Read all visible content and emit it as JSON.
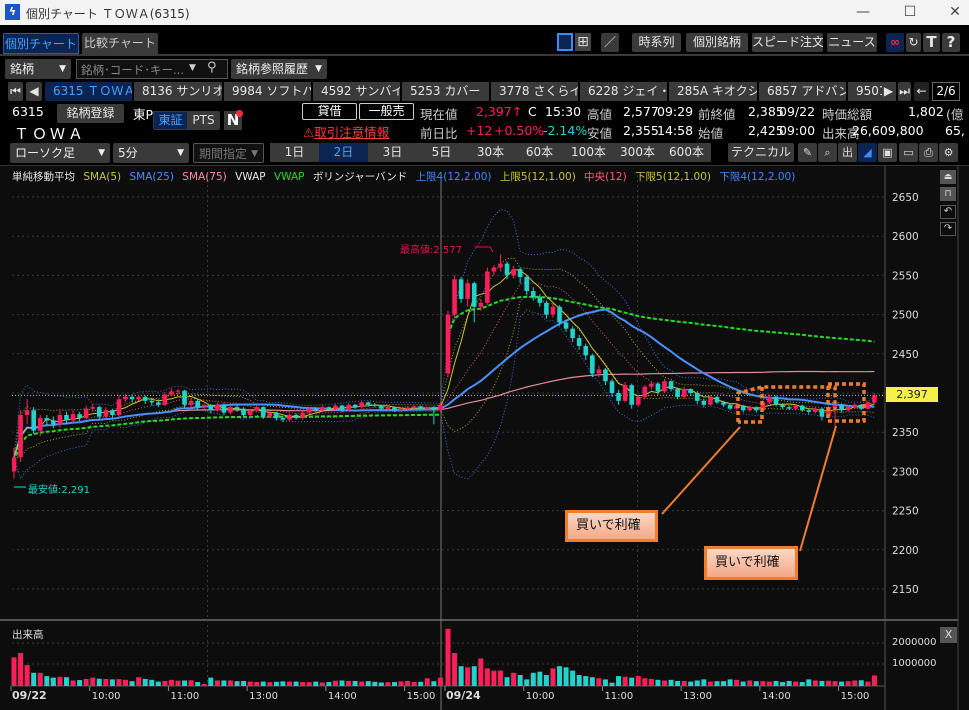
{
  "window": {
    "title": "個別チャート ＴＯＷＡ(6315)",
    "minimize": "—",
    "maximize": "☐",
    "close": "✕"
  },
  "tabs": [
    "個別チャート",
    "比較チャート"
  ],
  "toolbar": {
    "buttons": [
      "時系列",
      "個別銘柄",
      "スピード注文",
      "ニュース"
    ],
    "t_label": "T",
    "help_label": "?"
  },
  "search": {
    "type_select": "銘柄",
    "placeholder": "銘柄･コード･キー...",
    "history": "銘柄参照履歴"
  },
  "symbol_tabs": {
    "items": [
      "6315 ＴＯＷＡ",
      "8136 サンリオ",
      "9984 ソフトバ...",
      "4592 サンバイオ",
      "5253 カバー",
      "3778 さくらイ...",
      "6228 ジェイ・イ...",
      "285A キオクシ...",
      "6857 アドバン...",
      "9501"
    ],
    "active": 0,
    "page": "2/6"
  },
  "stock": {
    "code": "6315",
    "name": "ＴＯＷＡ",
    "register": "銘柄登録",
    "market": "東P",
    "exchange_toggle": [
      "東証",
      "PTS"
    ],
    "news_icon": "N",
    "credit": "貸借",
    "general_sell": "一般売",
    "warning": "取引注意情報",
    "current_label": "現在値",
    "current": "2,397",
    "current_arrow": "↑",
    "current_flag": "C",
    "current_time": "15:30",
    "high_label": "高値",
    "high": "2,577",
    "high_time": "09:29",
    "prev_close_label": "前終値",
    "prev_close": "2,385",
    "prev_close_date": "09/22",
    "mcap_label": "時価総額",
    "mcap": "1,802",
    "mcap_unit": "(億",
    "change_label": "前日比",
    "change": "+12",
    "change_pct": "+0.50%",
    "other_pct": "-2.14%",
    "low_label": "安値",
    "low": "2,355",
    "low_time": "14:58",
    "open_label": "始値",
    "open": "2,425",
    "open_time": "09:00",
    "volume_label": "出来高",
    "volume": "26,609,800",
    "volume_extra": "65,"
  },
  "controls": {
    "chart_type": "ローソク足",
    "interval": "5分",
    "period": "期間指定",
    "ranges": [
      "1日",
      "2日",
      "3日",
      "5日",
      "30本",
      "60本",
      "100本",
      "300本",
      "600本"
    ],
    "active_range": 1,
    "technical": "テクニカル"
  },
  "legend": [
    {
      "text": "単純移動平均",
      "color": "#e8e8e8"
    },
    {
      "text": "SMA(5)",
      "color": "#c9c632"
    },
    {
      "text": "SMA(25)",
      "color": "#4a90ff"
    },
    {
      "text": "SMA(75)",
      "color": "#ff8fa8"
    },
    {
      "text": "VWAP",
      "color": "#e8e8e8"
    },
    {
      "text": "VWAP",
      "color": "#22dd22"
    },
    {
      "text": "ボリンジャーバンド",
      "color": "#e8e8e8"
    },
    {
      "text": "上限4(12,2.00)",
      "color": "#3d8bff"
    },
    {
      "text": "上限5(12,1.00)",
      "color": "#c9c632"
    },
    {
      "text": "中央(12)",
      "color": "#ff5c7a"
    },
    {
      "text": "下限5(12,1.00)",
      "color": "#c9c632"
    },
    {
      "text": "下限4(12,2.00)",
      "color": "#3d8bff"
    }
  ],
  "colors": {
    "up": "#ff1e5a",
    "down": "#22d3cc",
    "current_price_tag": "#f5f04a",
    "annotation": "#ef7d2e"
  },
  "annotations": {
    "callouts": [
      "買いで利確",
      "買いで利確"
    ],
    "max_label": "最高値:2,577",
    "min_label": "最安値:2,291",
    "current_tag": "2,397"
  },
  "volume_panel": {
    "title": "出来高",
    "y_ticks": [
      "2000000",
      "1000000"
    ],
    "close": "X"
  },
  "chart_data": {
    "type": "candlestick",
    "interval": "5分",
    "ylim": [
      2120,
      2680
    ],
    "y_ticks": [
      2150,
      2200,
      2250,
      2300,
      2350,
      2400,
      2450,
      2500,
      2550,
      2600,
      2650
    ],
    "current_price": 2397,
    "x_ticks": [
      {
        "label": "09/22",
        "index": 0
      },
      {
        "label": "10:00",
        "index": 12
      },
      {
        "label": "11:00",
        "index": 24
      },
      {
        "label": "13:00",
        "index": 36
      },
      {
        "label": "14:00",
        "index": 48
      },
      {
        "label": "15:00",
        "index": 60
      },
      {
        "label": "09/24",
        "index": 66
      },
      {
        "label": "10:00",
        "index": 78
      },
      {
        "label": "11:00",
        "index": 90
      },
      {
        "label": "13:00",
        "index": 102
      },
      {
        "label": "14:00",
        "index": 114
      },
      {
        "label": "15:00",
        "index": 126
      }
    ],
    "ohlc": [
      [
        2300,
        2330,
        2291,
        2318
      ],
      [
        2318,
        2378,
        2312,
        2372
      ],
      [
        2372,
        2392,
        2360,
        2378
      ],
      [
        2378,
        2382,
        2348,
        2352
      ],
      [
        2352,
        2372,
        2345,
        2368
      ],
      [
        2368,
        2372,
        2358,
        2365
      ],
      [
        2365,
        2370,
        2355,
        2360
      ],
      [
        2360,
        2378,
        2356,
        2372
      ],
      [
        2372,
        2376,
        2360,
        2365
      ],
      [
        2365,
        2378,
        2362,
        2373
      ],
      [
        2373,
        2376,
        2364,
        2368
      ],
      [
        2368,
        2384,
        2366,
        2380
      ],
      [
        2380,
        2386,
        2376,
        2382
      ],
      [
        2382,
        2384,
        2366,
        2370
      ],
      [
        2370,
        2382,
        2368,
        2378
      ],
      [
        2378,
        2380,
        2368,
        2372
      ],
      [
        2372,
        2398,
        2370,
        2392
      ],
      [
        2392,
        2399,
        2388,
        2395
      ],
      [
        2395,
        2398,
        2388,
        2392
      ],
      [
        2392,
        2398,
        2390,
        2395
      ],
      [
        2395,
        2397,
        2386,
        2390
      ],
      [
        2390,
        2394,
        2384,
        2388
      ],
      [
        2388,
        2392,
        2382,
        2385
      ],
      [
        2385,
        2401,
        2383,
        2398
      ],
      [
        2398,
        2406,
        2396,
        2402
      ],
      [
        2402,
        2405,
        2398,
        2403
      ],
      [
        2403,
        2404,
        2380,
        2385
      ],
      [
        2385,
        2394,
        2382,
        2390
      ],
      [
        2390,
        2392,
        2378,
        2382
      ],
      [
        2382,
        2386,
        2379,
        2383
      ],
      [
        2383,
        2386,
        2374,
        2378
      ],
      [
        2378,
        2388,
        2376,
        2385
      ],
      [
        2385,
        2387,
        2372,
        2375
      ],
      [
        2375,
        2385,
        2373,
        2382
      ],
      [
        2382,
        2384,
        2376,
        2380
      ],
      [
        2380,
        2382,
        2369,
        2372
      ],
      [
        2372,
        2380,
        2370,
        2378
      ],
      [
        2378,
        2384,
        2376,
        2382
      ],
      [
        2382,
        2383,
        2367,
        2370
      ],
      [
        2370,
        2377,
        2368,
        2375
      ],
      [
        2375,
        2376,
        2365,
        2368
      ],
      [
        2368,
        2370,
        2363,
        2366
      ],
      [
        2366,
        2374,
        2364,
        2372
      ],
      [
        2372,
        2374,
        2366,
        2368
      ],
      [
        2368,
        2377,
        2366,
        2375
      ],
      [
        2375,
        2382,
        2373,
        2380
      ],
      [
        2380,
        2382,
        2376,
        2378
      ],
      [
        2378,
        2385,
        2376,
        2382
      ],
      [
        2382,
        2383,
        2378,
        2380
      ],
      [
        2380,
        2386,
        2378,
        2384
      ],
      [
        2384,
        2385,
        2376,
        2378
      ],
      [
        2378,
        2387,
        2377,
        2385
      ],
      [
        2385,
        2386,
        2380,
        2382
      ],
      [
        2382,
        2390,
        2380,
        2388
      ],
      [
        2388,
        2389,
        2383,
        2385
      ],
      [
        2385,
        2387,
        2382,
        2384
      ],
      [
        2384,
        2385,
        2378,
        2380
      ],
      [
        2380,
        2384,
        2378,
        2382
      ],
      [
        2382,
        2383,
        2376,
        2378
      ],
      [
        2378,
        2382,
        2376,
        2380
      ],
      [
        2380,
        2383,
        2379,
        2381
      ],
      [
        2381,
        2385,
        2380,
        2383
      ],
      [
        2383,
        2384,
        2378,
        2380
      ],
      [
        2380,
        2383,
        2379,
        2382
      ],
      [
        2382,
        2383,
        2360,
        2378
      ],
      [
        2378,
        2387,
        2377,
        2385
      ],
      [
        2425,
        2505,
        2420,
        2500
      ],
      [
        2500,
        2550,
        2495,
        2545
      ],
      [
        2545,
        2548,
        2515,
        2520
      ],
      [
        2520,
        2545,
        2510,
        2540
      ],
      [
        2540,
        2542,
        2490,
        2510
      ],
      [
        2510,
        2520,
        2505,
        2515
      ],
      [
        2515,
        2560,
        2512,
        2555
      ],
      [
        2555,
        2563,
        2550,
        2560
      ],
      [
        2560,
        2577,
        2555,
        2565
      ],
      [
        2565,
        2568,
        2545,
        2550
      ],
      [
        2550,
        2562,
        2546,
        2558
      ],
      [
        2558,
        2560,
        2540,
        2548
      ],
      [
        2548,
        2550,
        2525,
        2530
      ],
      [
        2530,
        2535,
        2518,
        2522
      ],
      [
        2522,
        2526,
        2510,
        2515
      ],
      [
        2515,
        2518,
        2495,
        2500
      ],
      [
        2500,
        2514,
        2496,
        2510
      ],
      [
        2510,
        2512,
        2486,
        2490
      ],
      [
        2490,
        2494,
        2478,
        2482
      ],
      [
        2482,
        2485,
        2465,
        2470
      ],
      [
        2470,
        2474,
        2455,
        2460
      ],
      [
        2460,
        2463,
        2442,
        2448
      ],
      [
        2448,
        2450,
        2420,
        2425
      ],
      [
        2425,
        2435,
        2420,
        2430
      ],
      [
        2430,
        2432,
        2410,
        2415
      ],
      [
        2415,
        2418,
        2395,
        2400
      ],
      [
        2400,
        2404,
        2385,
        2390
      ],
      [
        2390,
        2414,
        2388,
        2410
      ],
      [
        2410,
        2412,
        2380,
        2385
      ],
      [
        2385,
        2398,
        2383,
        2395
      ],
      [
        2395,
        2410,
        2392,
        2408
      ],
      [
        2408,
        2415,
        2404,
        2412
      ],
      [
        2412,
        2414,
        2398,
        2402
      ],
      [
        2402,
        2418,
        2400,
        2415
      ],
      [
        2415,
        2416,
        2402,
        2405
      ],
      [
        2405,
        2407,
        2392,
        2395
      ],
      [
        2395,
        2408,
        2393,
        2405
      ],
      [
        2405,
        2406,
        2396,
        2400
      ],
      [
        2400,
        2402,
        2386,
        2390
      ],
      [
        2390,
        2393,
        2382,
        2385
      ],
      [
        2385,
        2397,
        2384,
        2395
      ],
      [
        2395,
        2396,
        2386,
        2388
      ],
      [
        2388,
        2390,
        2382,
        2385
      ],
      [
        2385,
        2387,
        2378,
        2380
      ],
      [
        2380,
        2386,
        2378,
        2384
      ],
      [
        2384,
        2385,
        2375,
        2378
      ],
      [
        2378,
        2384,
        2376,
        2382
      ],
      [
        2382,
        2383,
        2375,
        2378
      ],
      [
        2378,
        2392,
        2376,
        2388
      ],
      [
        2388,
        2398,
        2386,
        2395
      ],
      [
        2395,
        2397,
        2383,
        2385
      ],
      [
        2385,
        2387,
        2380,
        2382
      ],
      [
        2382,
        2384,
        2378,
        2380
      ],
      [
        2380,
        2386,
        2378,
        2384
      ],
      [
        2384,
        2385,
        2376,
        2378
      ],
      [
        2378,
        2380,
        2373,
        2376
      ],
      [
        2376,
        2382,
        2374,
        2380
      ],
      [
        2380,
        2381,
        2365,
        2370
      ],
      [
        2370,
        2384,
        2368,
        2382
      ],
      [
        2382,
        2386,
        2355,
        2385
      ],
      [
        2385,
        2386,
        2375,
        2378
      ],
      [
        2378,
        2384,
        2377,
        2382
      ],
      [
        2382,
        2387,
        2380,
        2385
      ],
      [
        2385,
        2386,
        2378,
        2380
      ],
      [
        2380,
        2390,
        2379,
        2388
      ],
      [
        2388,
        2400,
        2386,
        2397
      ]
    ],
    "volume": [
      1300000,
      1500000,
      950000,
      600000,
      600000,
      450000,
      380000,
      420000,
      400000,
      250000,
      270000,
      320000,
      380000,
      330000,
      320000,
      300000,
      310000,
      280000,
      220000,
      400000,
      320000,
      280000,
      200000,
      230000,
      280000,
      240000,
      250000,
      260000,
      180000,
      90000,
      380000,
      250000,
      250000,
      250000,
      220000,
      230000,
      200000,
      180000,
      200000,
      170000,
      190000,
      210000,
      200000,
      200000,
      180000,
      170000,
      200000,
      160000,
      180000,
      240000,
      250000,
      230000,
      230000,
      200000,
      220000,
      190000,
      160000,
      170000,
      180000,
      210000,
      230000,
      180000,
      190000,
      350000,
      220000,
      380000,
      2600000,
      1500000,
      900000,
      850000,
      900000,
      1250000,
      800000,
      700000,
      700000,
      400000,
      600000,
      500000,
      300000,
      600000,
      650000,
      500000,
      800000,
      900000,
      850000,
      700000,
      500000,
      450000,
      400000,
      350000,
      300000,
      150000,
      450000,
      420000,
      380000,
      450000,
      350000,
      320000,
      280000,
      250000,
      280000,
      230000,
      230000,
      200000,
      250000,
      300000,
      200000,
      220000,
      220000,
      300000,
      280000,
      200000,
      250000,
      220000,
      220000,
      200000,
      230000,
      180000,
      230000,
      200000,
      180000,
      300000,
      250000,
      230000,
      240000,
      220000,
      200000,
      220000,
      250000,
      260000,
      200000,
      480000
    ]
  }
}
